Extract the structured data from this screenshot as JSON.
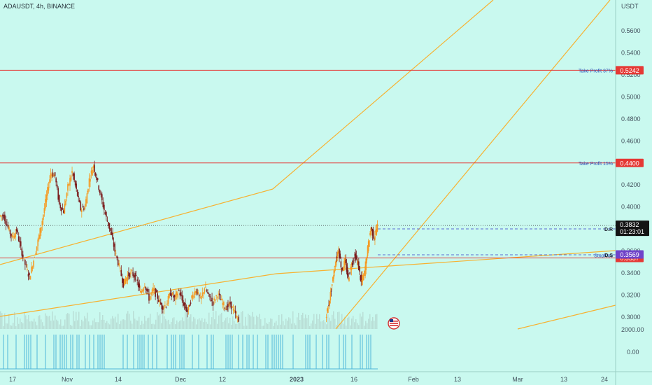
{
  "header": {
    "symbol_label": "ADAUSDT, 4h, BINANCE"
  },
  "chart_data": {
    "type": "candlestick",
    "title": "ADAUSDT, 4h, BINANCE",
    "currency": "USDT",
    "ylim": [
      0.285,
      0.585
    ],
    "y_ticks": [
      "0.5600",
      "0.5400",
      "0.5200",
      "0.5000",
      "0.4800",
      "0.4600",
      "0.4400",
      "0.4200",
      "0.4000",
      "0.3800",
      "0.3600",
      "0.3400",
      "0.3200",
      "0.3000"
    ],
    "x_ticks": [
      "17",
      "Nov",
      "14",
      "Dec",
      "12",
      "2023",
      "16",
      "Feb",
      "13",
      "Mar",
      "13",
      "24"
    ],
    "levels": [
      {
        "label": "Take Profit 37%",
        "price": 0.5242,
        "badge": "0.5242",
        "color": "#e53935"
      },
      {
        "label": "Take Profit 15%",
        "price": 0.44,
        "badge": "0.4400",
        "color": "#e53935"
      },
      {
        "label": "Stoploss",
        "price": 0.3537,
        "badge": "0.3537",
        "color": "#e53935"
      }
    ],
    "markers": [
      {
        "label": "D.R",
        "price": 0.3807,
        "badge": "0.3807",
        "color": "#6f43c9"
      },
      {
        "label": "D.S",
        "price": 0.3569,
        "badge": "0.3569",
        "color": "#6f43c9"
      }
    ],
    "last_price": {
      "price": 0.3832,
      "badge": "0.3832",
      "countdown": "01:23:01"
    },
    "price_series": [
      0.392,
      0.381,
      0.372,
      0.379,
      0.362,
      0.348,
      0.336,
      0.352,
      0.369,
      0.388,
      0.41,
      0.431,
      0.428,
      0.402,
      0.396,
      0.418,
      0.432,
      0.415,
      0.398,
      0.4,
      0.425,
      0.438,
      0.422,
      0.405,
      0.39,
      0.378,
      0.36,
      0.346,
      0.33,
      0.338,
      0.34,
      0.335,
      0.322,
      0.33,
      0.317,
      0.325,
      0.318,
      0.309,
      0.311,
      0.322,
      0.317,
      0.324,
      0.312,
      0.305,
      0.318,
      0.325,
      0.315,
      0.327,
      0.319,
      0.313,
      0.321,
      0.314,
      0.308,
      0.312,
      0.304,
      0.296,
      0.312,
      0.33,
      0.349,
      0.362,
      0.342,
      0.351,
      0.335,
      0.348,
      0.356,
      0.349,
      0.331,
      0.34,
      0.362,
      0.381,
      0.372,
      0.383
    ],
    "gap_after_index": 55,
    "volume_axis_ticks": [
      "2000.00",
      "0.00"
    ]
  }
}
